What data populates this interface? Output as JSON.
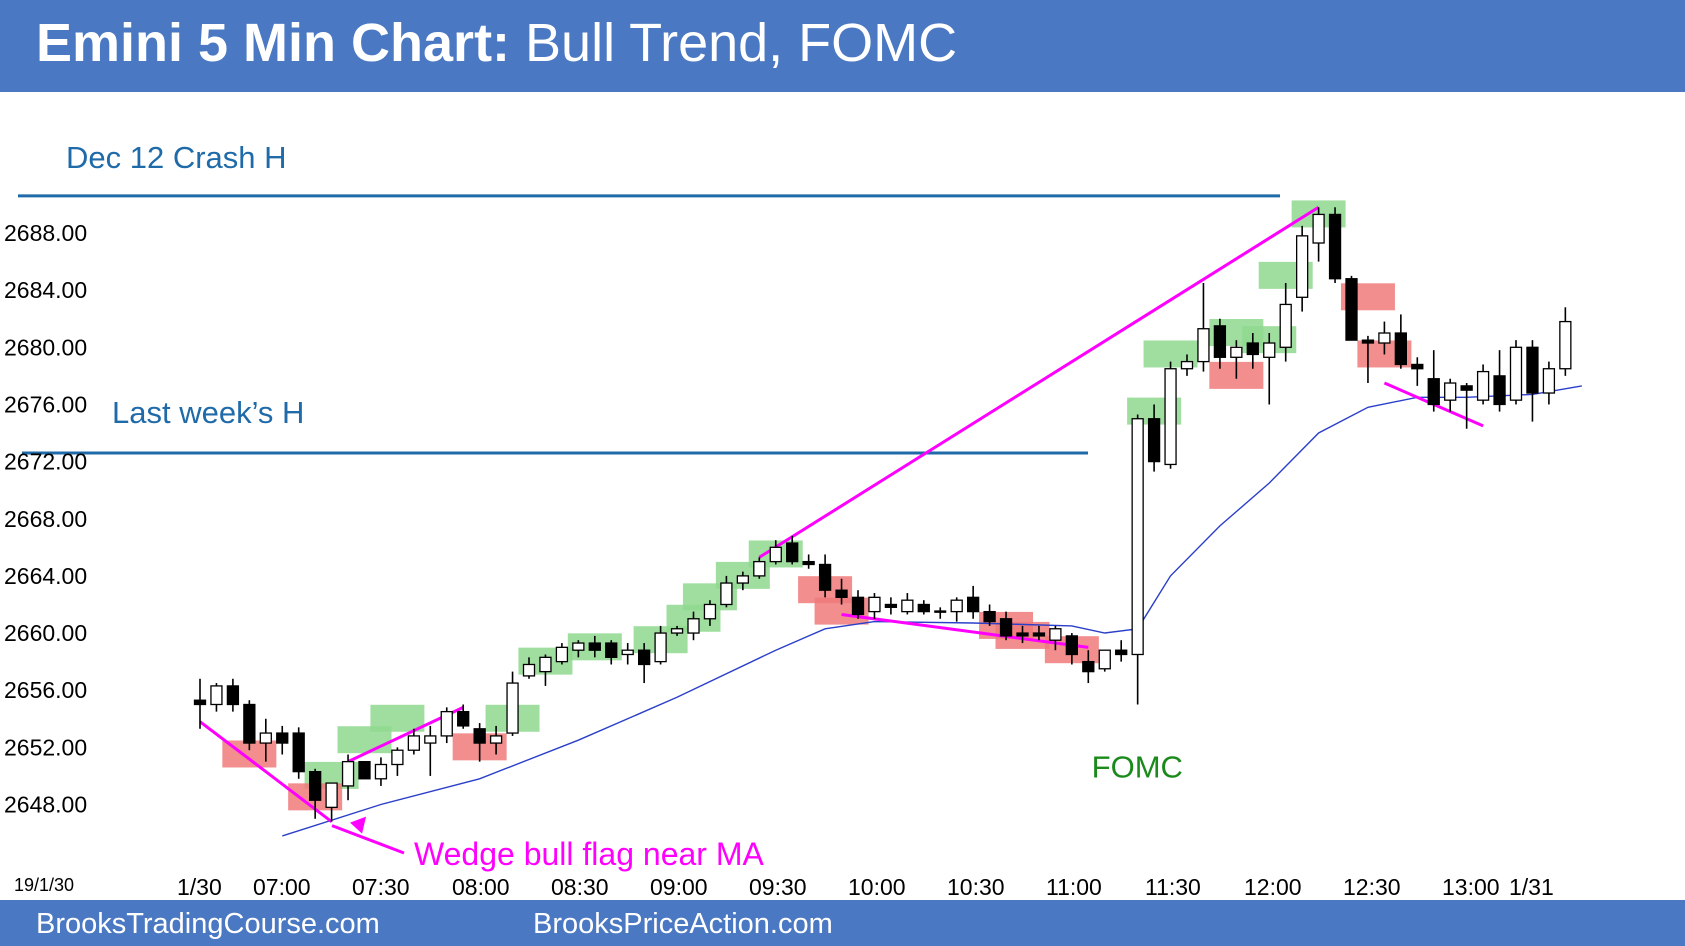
{
  "header": {
    "title_bold": "Emini 5 Min Chart:",
    "title_rest": " Bull Trend, FOMC",
    "background": "#4a78c2"
  },
  "footer": {
    "left_text": "BrooksTradingCourse.com",
    "right_text": "BrooksPriceAction.com"
  },
  "colors": {
    "bull_bar_highlight": "#8fd88f",
    "bear_bar_highlight": "#f07a7a",
    "trendline": "#ff00ff",
    "moving_average": "#2b3fc9",
    "level_line": "#1f6aa8",
    "fomc_label": "#1a8a1a",
    "text_blue": "#1f6aa8"
  },
  "chart_data": {
    "type": "candlestick",
    "date_label": "19/1/30",
    "x_ticks": [
      "1/30",
      "07:00",
      "07:30",
      "08:00",
      "08:30",
      "09:00",
      "09:30",
      "10:00",
      "10:30",
      "11:00",
      "11:30",
      "12:00",
      "12:30",
      "13:00",
      "1/31"
    ],
    "y_ticks": [
      "2688.00",
      "2684.00",
      "2680.00",
      "2676.00",
      "2672.00",
      "2668.00",
      "2664.00",
      "2660.00",
      "2656.00",
      "2652.00",
      "2648.00"
    ],
    "ylim": [
      2645.8,
      2694.2
    ],
    "levels": [
      {
        "label": "Dec 12 Crash H",
        "value": 2690.6
      },
      {
        "label": "Last week’s H",
        "value": 2672.6
      }
    ],
    "annotations": [
      {
        "text": "FOMC",
        "time": "11:00",
        "price": 2651.3
      },
      {
        "text": "Wedge bull flag near MA",
        "time": "07:30",
        "price": 2646.8
      }
    ],
    "candles": [
      [
        "06:35",
        2655.3,
        2656.8,
        2653.3,
        2655.0
      ],
      [
        "06:40",
        2655.0,
        2656.5,
        2654.5,
        2656.3
      ],
      [
        "06:45",
        2656.3,
        2656.8,
        2654.5,
        2655.0
      ],
      [
        "06:50",
        2655.0,
        2655.3,
        2651.8,
        2652.3
      ],
      [
        "06:55",
        2652.3,
        2654.0,
        2651.0,
        2653.0
      ],
      [
        "07:00",
        2653.0,
        2653.5,
        2651.5,
        2652.3
      ],
      [
        "07:05",
        2653.0,
        2653.4,
        2649.8,
        2650.3
      ],
      [
        "07:10",
        2650.3,
        2650.5,
        2647.0,
        2648.3
      ],
      [
        "07:15",
        2647.8,
        2649.5,
        2646.8,
        2649.5
      ],
      [
        "07:20",
        2649.3,
        2651.5,
        2648.3,
        2651.0
      ],
      [
        "07:25",
        2651.0,
        2651.0,
        2649.8,
        2649.8
      ],
      [
        "07:30",
        2649.8,
        2651.3,
        2649.3,
        2650.8
      ],
      [
        "07:35",
        2650.8,
        2652.0,
        2650.0,
        2651.8
      ],
      [
        "07:40",
        2651.8,
        2653.3,
        2651.5,
        2652.8
      ],
      [
        "07:45",
        2652.3,
        2653.5,
        2650.0,
        2652.8
      ],
      [
        "07:50",
        2652.8,
        2654.8,
        2652.3,
        2654.5
      ],
      [
        "07:55",
        2654.5,
        2655.0,
        2653.3,
        2653.5
      ],
      [
        "08:00",
        2653.3,
        2653.7,
        2651.0,
        2652.3
      ],
      [
        "08:05",
        2652.3,
        2653.5,
        2651.5,
        2652.8
      ],
      [
        "08:10",
        2653.0,
        2657.3,
        2652.8,
        2656.5
      ],
      [
        "08:15",
        2657.0,
        2658.3,
        2656.8,
        2657.8
      ],
      [
        "08:20",
        2657.3,
        2658.5,
        2656.3,
        2658.3
      ],
      [
        "08:25",
        2658.0,
        2659.3,
        2657.8,
        2659.0
      ],
      [
        "08:30",
        2658.8,
        2659.5,
        2658.3,
        2659.3
      ],
      [
        "08:35",
        2659.3,
        2659.8,
        2658.3,
        2658.8
      ],
      [
        "08:40",
        2659.3,
        2659.5,
        2657.8,
        2658.3
      ],
      [
        "08:45",
        2658.5,
        2659.3,
        2657.8,
        2658.8
      ],
      [
        "08:50",
        2658.8,
        2659.3,
        2656.5,
        2657.8
      ],
      [
        "08:55",
        2658.0,
        2660.5,
        2657.8,
        2660.0
      ],
      [
        "09:00",
        2660.0,
        2660.5,
        2659.8,
        2660.3
      ],
      [
        "09:05",
        2660.0,
        2661.5,
        2659.5,
        2661.0
      ],
      [
        "09:10",
        2661.0,
        2662.3,
        2660.5,
        2662.0
      ],
      [
        "09:15",
        2662.0,
        2664.0,
        2661.8,
        2663.5
      ],
      [
        "09:20",
        2663.5,
        2664.3,
        2663.0,
        2664.0
      ],
      [
        "09:25",
        2664.0,
        2665.3,
        2663.8,
        2665.0
      ],
      [
        "09:30",
        2665.0,
        2666.5,
        2664.8,
        2666.0
      ],
      [
        "09:35",
        2666.3,
        2666.8,
        2664.8,
        2665.0
      ],
      [
        "09:40",
        2665.0,
        2665.5,
        2664.5,
        2664.8
      ],
      [
        "09:45",
        2664.8,
        2665.5,
        2662.5,
        2663.0
      ],
      [
        "09:50",
        2663.0,
        2663.8,
        2662.0,
        2662.5
      ],
      [
        "09:55",
        2662.5,
        2663.0,
        2661.0,
        2661.3
      ],
      [
        "10:00",
        2661.5,
        2662.8,
        2661.0,
        2662.5
      ],
      [
        "10:05",
        2662.0,
        2662.5,
        2661.3,
        2661.8
      ],
      [
        "10:10",
        2661.5,
        2662.8,
        2661.3,
        2662.3
      ],
      [
        "10:15",
        2662.0,
        2662.3,
        2661.3,
        2661.5
      ],
      [
        "10:20",
        2661.5,
        2661.8,
        2661.0,
        2661.5
      ],
      [
        "10:25",
        2661.5,
        2662.5,
        2660.8,
        2662.3
      ],
      [
        "10:30",
        2662.5,
        2663.3,
        2661.0,
        2661.5
      ],
      [
        "10:35",
        2661.5,
        2662.0,
        2660.5,
        2660.8
      ],
      [
        "10:40",
        2661.0,
        2661.5,
        2659.5,
        2659.8
      ],
      [
        "10:45",
        2660.0,
        2660.5,
        2659.3,
        2659.8
      ],
      [
        "10:50",
        2660.0,
        2660.5,
        2659.5,
        2659.8
      ],
      [
        "10:55",
        2659.5,
        2660.5,
        2658.8,
        2660.3
      ],
      [
        "11:00",
        2659.8,
        2660.0,
        2657.8,
        2658.5
      ],
      [
        "11:05",
        2658.0,
        2658.8,
        2656.5,
        2657.3
      ],
      [
        "11:10",
        2657.5,
        2658.8,
        2657.3,
        2658.8
      ],
      [
        "11:15",
        2658.8,
        2659.5,
        2658.0,
        2658.5
      ],
      [
        "11:20",
        2658.5,
        2675.3,
        2655.0,
        2675.0
      ],
      [
        "11:25",
        2675.0,
        2676.0,
        2671.3,
        2672.0
      ],
      [
        "11:30",
        2671.8,
        2679.0,
        2671.5,
        2678.5
      ],
      [
        "11:35",
        2678.5,
        2679.5,
        2678.0,
        2679.0
      ],
      [
        "11:40",
        2679.0,
        2684.5,
        2678.3,
        2681.3
      ],
      [
        "11:45",
        2681.5,
        2682.0,
        2678.5,
        2679.3
      ],
      [
        "11:50",
        2679.3,
        2680.5,
        2677.8,
        2680.0
      ],
      [
        "11:55",
        2680.3,
        2681.0,
        2678.5,
        2679.5
      ],
      [
        "12:00",
        2679.3,
        2681.0,
        2676.0,
        2680.3
      ],
      [
        "12:05",
        2680.0,
        2684.5,
        2679.0,
        2683.0
      ],
      [
        "12:10",
        2683.5,
        2688.5,
        2682.5,
        2687.8
      ],
      [
        "12:15",
        2687.3,
        2689.8,
        2686.0,
        2689.3
      ],
      [
        "12:20",
        2689.3,
        2689.8,
        2684.5,
        2684.8
      ],
      [
        "12:25",
        2684.8,
        2685.0,
        2680.5,
        2680.5
      ],
      [
        "12:30",
        2680.5,
        2680.8,
        2677.5,
        2680.3
      ],
      [
        "12:35",
        2680.3,
        2681.8,
        2679.5,
        2681.0
      ],
      [
        "12:40",
        2681.0,
        2682.3,
        2678.5,
        2678.8
      ],
      [
        "12:45",
        2678.8,
        2679.3,
        2677.3,
        2678.5
      ],
      [
        "12:50",
        2677.8,
        2679.8,
        2675.5,
        2676.0
      ],
      [
        "12:55",
        2676.3,
        2677.8,
        2675.5,
        2677.5
      ],
      [
        "13:00",
        2677.3,
        2677.5,
        2674.3,
        2677.0
      ],
      [
        "13:05",
        2676.3,
        2678.8,
        2676.0,
        2678.3
      ],
      [
        "13:10",
        2678.0,
        2679.8,
        2675.5,
        2676.0
      ],
      [
        "13:15",
        2676.3,
        2680.5,
        2676.0,
        2680.0
      ],
      [
        "13:20",
        2680.0,
        2680.5,
        2674.8,
        2676.8
      ],
      [
        "13:25",
        2676.8,
        2679.0,
        2676.0,
        2678.5
      ],
      [
        "13:30",
        2678.5,
        2682.8,
        2678.0,
        2681.8
      ]
    ],
    "moving_average": [
      [
        "07:00",
        2645.8
      ],
      [
        "07:30",
        2648.0
      ],
      [
        "08:00",
        2649.8
      ],
      [
        "08:30",
        2652.5
      ],
      [
        "09:00",
        2655.5
      ],
      [
        "09:30",
        2658.8
      ],
      [
        "09:45",
        2660.3
      ],
      [
        "10:00",
        2660.8
      ],
      [
        "10:30",
        2660.7
      ],
      [
        "11:00",
        2660.5
      ],
      [
        "11:10",
        2660.0
      ],
      [
        "11:20",
        2660.3
      ],
      [
        "11:30",
        2664.0
      ],
      [
        "11:45",
        2667.5
      ],
      [
        "12:00",
        2670.5
      ],
      [
        "12:15",
        2674.0
      ],
      [
        "12:30",
        2675.8
      ],
      [
        "12:45",
        2676.5
      ],
      [
        "13:00",
        2676.5
      ],
      [
        "13:20",
        2676.7
      ],
      [
        "13:35",
        2677.3
      ]
    ],
    "trendlines": [
      {
        "points": [
          [
            "06:35",
            2653.8
          ],
          [
            "07:15",
            2646.8
          ]
        ]
      },
      {
        "points": [
          [
            "07:20",
            2651.0
          ],
          [
            "07:55",
            2654.8
          ]
        ]
      },
      {
        "points": [
          [
            "09:25",
            2665.3
          ],
          [
            "12:15",
            2689.8
          ]
        ]
      },
      {
        "points": [
          [
            "09:50",
            2661.3
          ],
          [
            "11:05",
            2659.0
          ]
        ]
      },
      {
        "points": [
          [
            "12:35",
            2677.5
          ],
          [
            "13:05",
            2674.5
          ]
        ]
      }
    ],
    "bull_highlights": [
      [
        "07:15",
        2650.0
      ],
      [
        "07:25",
        2652.5
      ],
      [
        "07:35",
        2654.0
      ],
      [
        "08:10",
        2654.0
      ],
      [
        "08:20",
        2658.0
      ],
      [
        "08:35",
        2659.0
      ],
      [
        "08:55",
        2659.5
      ],
      [
        "09:05",
        2661.0
      ],
      [
        "09:10",
        2662.5
      ],
      [
        "09:20",
        2664.0
      ],
      [
        "09:30",
        2665.5
      ],
      [
        "11:25",
        2675.5
      ],
      [
        "11:30",
        2679.5
      ],
      [
        "11:50",
        2681.0
      ],
      [
        "12:00",
        2680.5
      ],
      [
        "12:05",
        2685.0
      ],
      [
        "12:15",
        2689.3
      ]
    ],
    "bear_highlights": [
      [
        "06:50",
        2651.5
      ],
      [
        "07:10",
        2648.5
      ],
      [
        "08:00",
        2652.0
      ],
      [
        "09:45",
        2663.0
      ],
      [
        "09:50",
        2661.5
      ],
      [
        "10:40",
        2660.5
      ],
      [
        "10:45",
        2659.8
      ],
      [
        "11:00",
        2658.8
      ],
      [
        "11:50",
        2678.0
      ],
      [
        "12:30",
        2683.5
      ],
      [
        "12:35",
        2679.5
      ]
    ]
  }
}
